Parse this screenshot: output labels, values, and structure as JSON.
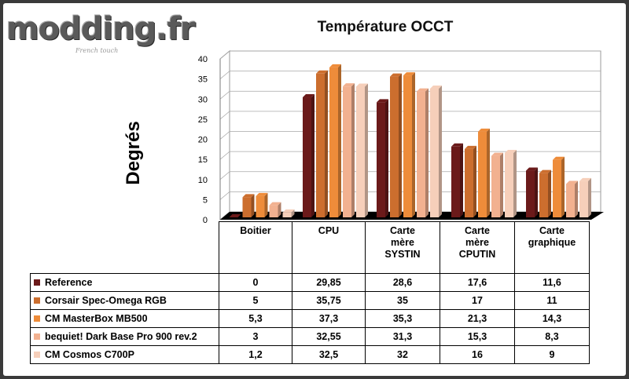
{
  "logo": {
    "text": "modding.fr",
    "subtitle": "French touch"
  },
  "chart_data": {
    "type": "bar",
    "title": "Température OCCT",
    "ylabel": "Degrés",
    "xlabel": "",
    "ylim": [
      0,
      40
    ],
    "yticks": [
      "0",
      "5",
      "10",
      "15",
      "20",
      "25",
      "30",
      "35",
      "40"
    ],
    "categories": [
      "Boitier",
      "CPU",
      "Carte mère SYSTIN",
      "Carte mère CPUTIN",
      "Carte graphique"
    ],
    "category_lines": [
      [
        "Boitier"
      ],
      [
        "CPU"
      ],
      [
        "Carte",
        "mère",
        "SYSTIN"
      ],
      [
        "Carte",
        "mère",
        "CPUTIN"
      ],
      [
        "Carte",
        "graphique"
      ]
    ],
    "grid": true,
    "legend": "table",
    "series": [
      {
        "name": "Reference",
        "color": "#6b1a1a",
        "values": [
          0,
          29.85,
          28.6,
          17.6,
          11.6
        ],
        "labels": [
          "0",
          "29,85",
          "28,6",
          "17,6",
          "11,6"
        ]
      },
      {
        "name": "Corsair Spec-Omega RGB",
        "color": "#cc6e2e",
        "values": [
          5,
          35.75,
          35,
          17,
          11
        ],
        "labels": [
          "5",
          "35,75",
          "35",
          "17",
          "11"
        ]
      },
      {
        "name": "CM MasterBox MB500",
        "color": "#ee8c3a",
        "values": [
          5.3,
          37.3,
          35.3,
          21.3,
          14.3
        ],
        "labels": [
          "5,3",
          "37,3",
          "35,3",
          "21,3",
          "14,3"
        ]
      },
      {
        "name": "bequiet! Dark Base Pro 900 rev.2",
        "color": "#f2b190",
        "values": [
          3,
          32.55,
          31.3,
          15.3,
          8.3
        ],
        "labels": [
          "3",
          "32,55",
          "31,3",
          "15,3",
          "8,3"
        ]
      },
      {
        "name": "CM Cosmos C700P",
        "color": "#f6cfba",
        "values": [
          1.2,
          32.5,
          32,
          16,
          9
        ],
        "labels": [
          "1,2",
          "32,5",
          "32",
          "16",
          "9"
        ]
      }
    ]
  }
}
